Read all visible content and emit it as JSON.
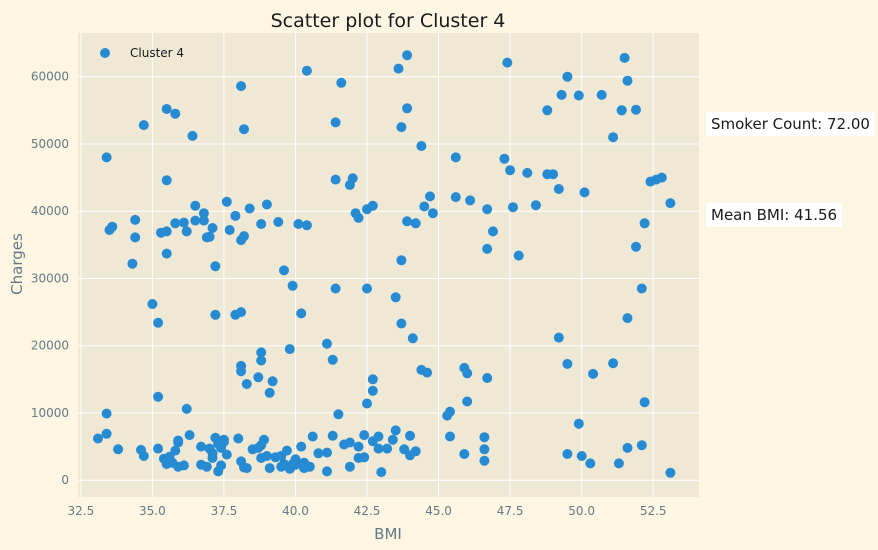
{
  "chart_data": {
    "type": "scatter",
    "title": "Scatter plot for Cluster 4",
    "xlabel": "BMI",
    "ylabel": "Charges",
    "xlim": [
      32.4,
      54.1
    ],
    "ylim": [
      -2500,
      66500
    ],
    "xticks": [
      32.5,
      35.0,
      37.5,
      40.0,
      42.5,
      45.0,
      47.5,
      50.0,
      52.5
    ],
    "xtick_labels": [
      "32.5",
      "35.0",
      "37.5",
      "40.0",
      "42.5",
      "45.0",
      "47.5",
      "50.0",
      "52.5"
    ],
    "yticks": [
      0,
      10000,
      20000,
      30000,
      40000,
      50000,
      60000
    ],
    "ytick_labels": [
      "0",
      "10000",
      "20000",
      "30000",
      "40000",
      "50000",
      "60000"
    ],
    "grid": true,
    "legend_placement": "top-left",
    "colors": {
      "background": "#fdf6e3",
      "plot_area": "#eee8d5",
      "point": "#268bd2",
      "grid": "#ffffff",
      "axis_text": "#657b83"
    },
    "series": [
      {
        "name": "Cluster 4",
        "points": [
          [
            33.4,
            48000
          ],
          [
            34.7,
            52800
          ],
          [
            35.5,
            55200
          ],
          [
            35.8,
            54500
          ],
          [
            36.4,
            51200
          ],
          [
            38.1,
            58600
          ],
          [
            38.2,
            52200
          ],
          [
            40.4,
            60900
          ],
          [
            41.6,
            59100
          ],
          [
            43.6,
            61200
          ],
          [
            43.9,
            63200
          ],
          [
            47.4,
            62100
          ],
          [
            49.5,
            60000
          ],
          [
            51.5,
            62800
          ],
          [
            51.6,
            59400
          ],
          [
            48.8,
            55000
          ],
          [
            49.3,
            57300
          ],
          [
            49.9,
            57200
          ],
          [
            50.7,
            57300
          ],
          [
            51.4,
            55000
          ],
          [
            51.9,
            55100
          ],
          [
            51.1,
            51000
          ],
          [
            41.4,
            53200
          ],
          [
            43.7,
            52500
          ],
          [
            43.9,
            55300
          ],
          [
            44.4,
            49700
          ],
          [
            33.5,
            37200
          ],
          [
            33.6,
            37700
          ],
          [
            34.4,
            38700
          ],
          [
            34.4,
            36100
          ],
          [
            34.3,
            32200
          ],
          [
            35.3,
            36800
          ],
          [
            35.5,
            37000
          ],
          [
            35.5,
            44600
          ],
          [
            35.5,
            33700
          ],
          [
            35.8,
            38200
          ],
          [
            36.1,
            38300
          ],
          [
            36.2,
            37000
          ],
          [
            36.5,
            38600
          ],
          [
            36.5,
            40800
          ],
          [
            36.8,
            39700
          ],
          [
            36.8,
            38600
          ],
          [
            37.0,
            36200
          ],
          [
            36.9,
            36100
          ],
          [
            37.1,
            37500
          ],
          [
            37.2,
            31800
          ],
          [
            37.6,
            41400
          ],
          [
            37.7,
            37200
          ],
          [
            37.9,
            39300
          ],
          [
            38.1,
            35700
          ],
          [
            38.2,
            36300
          ],
          [
            38.4,
            40400
          ],
          [
            38.8,
            38100
          ],
          [
            39.0,
            41000
          ],
          [
            39.4,
            38400
          ],
          [
            39.6,
            31200
          ],
          [
            39.9,
            28900
          ],
          [
            40.1,
            38100
          ],
          [
            40.4,
            37900
          ],
          [
            41.4,
            44700
          ],
          [
            41.4,
            28500
          ],
          [
            41.9,
            43900
          ],
          [
            42.0,
            44900
          ],
          [
            42.1,
            39700
          ],
          [
            42.2,
            39000
          ],
          [
            42.5,
            40300
          ],
          [
            42.7,
            40800
          ],
          [
            42.5,
            28500
          ],
          [
            43.5,
            27200
          ],
          [
            43.7,
            32700
          ],
          [
            44.2,
            38200
          ],
          [
            43.9,
            38500
          ],
          [
            44.5,
            40700
          ],
          [
            44.7,
            42200
          ],
          [
            44.8,
            39700
          ],
          [
            45.6,
            42100
          ],
          [
            45.6,
            48000
          ],
          [
            46.1,
            41600
          ],
          [
            46.7,
            40300
          ],
          [
            46.7,
            34400
          ],
          [
            46.9,
            37000
          ],
          [
            47.3,
            47800
          ],
          [
            47.5,
            46100
          ],
          [
            47.6,
            40600
          ],
          [
            47.8,
            33400
          ],
          [
            48.1,
            45700
          ],
          [
            48.4,
            40900
          ],
          [
            48.8,
            45500
          ],
          [
            49.0,
            45500
          ],
          [
            49.2,
            43300
          ],
          [
            50.1,
            42800
          ],
          [
            51.9,
            34700
          ],
          [
            52.2,
            38200
          ],
          [
            52.4,
            44400
          ],
          [
            52.6,
            44700
          ],
          [
            52.8,
            45000
          ],
          [
            53.1,
            41200
          ],
          [
            35.0,
            26200
          ],
          [
            35.2,
            23400
          ],
          [
            37.2,
            24600
          ],
          [
            37.9,
            24600
          ],
          [
            38.1,
            25000
          ],
          [
            40.2,
            24800
          ],
          [
            39.8,
            19500
          ],
          [
            38.8,
            19000
          ],
          [
            38.8,
            17800
          ],
          [
            38.1,
            16200
          ],
          [
            38.1,
            17000
          ],
          [
            38.3,
            14300
          ],
          [
            38.7,
            15300
          ],
          [
            39.2,
            14700
          ],
          [
            39.1,
            13000
          ],
          [
            41.1,
            20300
          ],
          [
            41.3,
            17900
          ],
          [
            42.7,
            13300
          ],
          [
            42.7,
            15000
          ],
          [
            42.5,
            11400
          ],
          [
            43.7,
            23300
          ],
          [
            44.1,
            21100
          ],
          [
            44.4,
            16400
          ],
          [
            44.6,
            16000
          ],
          [
            45.4,
            10200
          ],
          [
            45.3,
            9600
          ],
          [
            45.9,
            16700
          ],
          [
            46.0,
            15900
          ],
          [
            46.0,
            11700
          ],
          [
            46.7,
            15200
          ],
          [
            49.2,
            21200
          ],
          [
            49.5,
            17300
          ],
          [
            50.4,
            15800
          ],
          [
            51.1,
            17400
          ],
          [
            51.6,
            24100
          ],
          [
            52.1,
            28500
          ],
          [
            52.2,
            11600
          ],
          [
            51.4,
            55000
          ],
          [
            33.1,
            6200
          ],
          [
            33.4,
            6900
          ],
          [
            33.4,
            9900
          ],
          [
            33.8,
            4600
          ],
          [
            34.6,
            4500
          ],
          [
            34.7,
            3600
          ],
          [
            35.2,
            12400
          ],
          [
            35.2,
            4700
          ],
          [
            35.4,
            3200
          ],
          [
            35.5,
            2400
          ],
          [
            35.6,
            3500
          ],
          [
            35.7,
            2600
          ],
          [
            35.8,
            4400
          ],
          [
            35.9,
            5600
          ],
          [
            35.9,
            5900
          ],
          [
            35.9,
            2000
          ],
          [
            36.1,
            2200
          ],
          [
            36.2,
            10600
          ],
          [
            36.3,
            6700
          ],
          [
            36.7,
            5000
          ],
          [
            36.7,
            2300
          ],
          [
            36.9,
            2000
          ],
          [
            37.0,
            4700
          ],
          [
            37.1,
            4000
          ],
          [
            37.1,
            3300
          ],
          [
            37.2,
            6300
          ],
          [
            37.3,
            5400
          ],
          [
            37.3,
            1300
          ],
          [
            37.4,
            2200
          ],
          [
            37.4,
            4800
          ],
          [
            37.5,
            5700
          ],
          [
            37.5,
            6000
          ],
          [
            37.6,
            3800
          ],
          [
            38.0,
            6200
          ],
          [
            38.1,
            2800
          ],
          [
            38.2,
            1900
          ],
          [
            38.3,
            1800
          ],
          [
            38.5,
            4600
          ],
          [
            38.7,
            4800
          ],
          [
            38.8,
            3300
          ],
          [
            38.8,
            5200
          ],
          [
            38.9,
            6000
          ],
          [
            39.0,
            3600
          ],
          [
            39.1,
            1800
          ],
          [
            39.3,
            3400
          ],
          [
            39.5,
            2000
          ],
          [
            39.5,
            3600
          ],
          [
            39.6,
            2400
          ],
          [
            39.7,
            4400
          ],
          [
            39.8,
            1700
          ],
          [
            39.9,
            2400
          ],
          [
            40.0,
            3100
          ],
          [
            40.0,
            2300
          ],
          [
            40.2,
            5000
          ],
          [
            40.3,
            2600
          ],
          [
            40.3,
            1800
          ],
          [
            40.5,
            2000
          ],
          [
            40.6,
            6500
          ],
          [
            40.8,
            4000
          ],
          [
            41.1,
            4100
          ],
          [
            41.1,
            1300
          ],
          [
            41.3,
            6600
          ],
          [
            41.5,
            9800
          ],
          [
            41.7,
            5300
          ],
          [
            41.9,
            5600
          ],
          [
            41.9,
            2000
          ],
          [
            42.2,
            5000
          ],
          [
            42.2,
            3300
          ],
          [
            42.4,
            6700
          ],
          [
            42.4,
            3400
          ],
          [
            42.7,
            5800
          ],
          [
            42.9,
            4700
          ],
          [
            42.9,
            6500
          ],
          [
            43.0,
            1200
          ],
          [
            43.2,
            4700
          ],
          [
            43.4,
            6000
          ],
          [
            43.5,
            7400
          ],
          [
            43.8,
            4600
          ],
          [
            44.0,
            6600
          ],
          [
            44.0,
            3700
          ],
          [
            44.2,
            4300
          ],
          [
            45.4,
            6500
          ],
          [
            45.9,
            3900
          ],
          [
            46.6,
            6400
          ],
          [
            46.6,
            4600
          ],
          [
            46.6,
            2900
          ],
          [
            49.5,
            3900
          ],
          [
            49.9,
            8400
          ],
          [
            50.0,
            3600
          ],
          [
            50.3,
            2500
          ],
          [
            51.3,
            2500
          ],
          [
            51.6,
            4800
          ],
          [
            52.1,
            5200
          ],
          [
            53.1,
            1100
          ]
        ]
      }
    ]
  },
  "annotations": {
    "smoker_count": "Smoker Count: 72.00",
    "mean_bmi": "Mean BMI: 41.56"
  }
}
